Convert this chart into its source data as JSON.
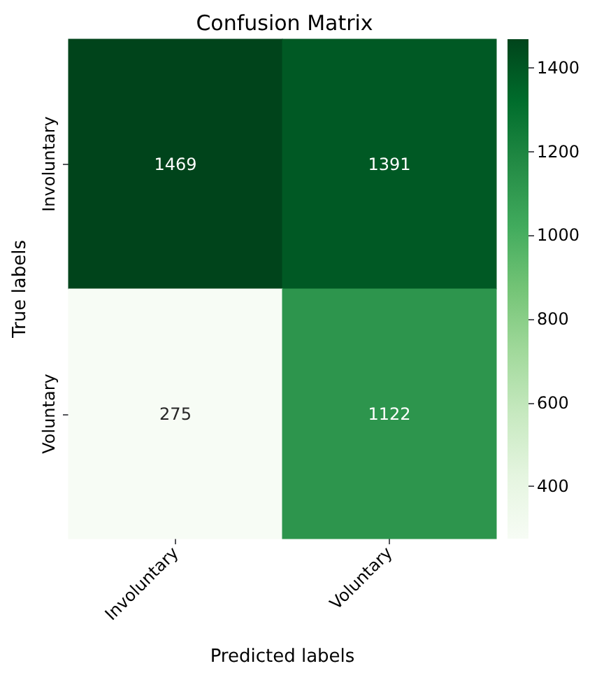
{
  "chart_data": {
    "type": "heatmap",
    "title": "Confusion Matrix",
    "xlabel": "Predicted labels",
    "ylabel": "True labels",
    "categories": [
      "Involuntary",
      "Voluntary"
    ],
    "y_categories": [
      "Involuntary",
      "Voluntary"
    ],
    "cells": [
      [
        1469,
        1391
      ],
      [
        275,
        1122
      ]
    ],
    "data_labels": true,
    "clim": [
      275,
      1469
    ],
    "cticks": [
      400,
      600,
      800,
      1000,
      1200,
      1400
    ]
  }
}
